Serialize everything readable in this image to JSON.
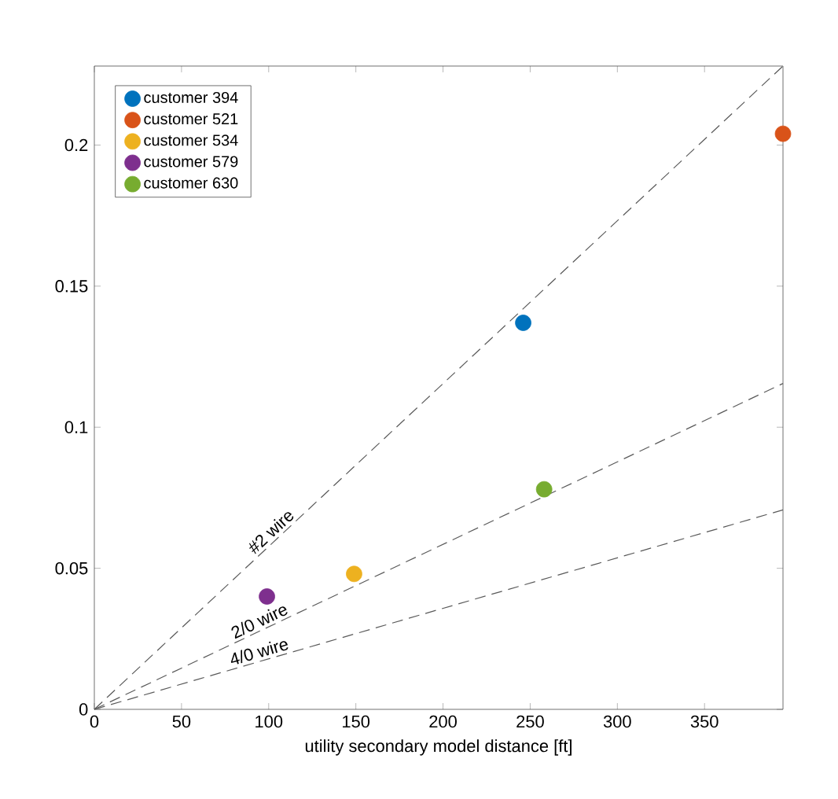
{
  "chart_data": {
    "type": "scatter",
    "xlabel": "utility secondary model distance [ft]",
    "xlim": [
      0,
      395
    ],
    "ylim": [
      0,
      0.228
    ],
    "xticks": [
      0,
      50,
      100,
      150,
      200,
      250,
      300,
      350
    ],
    "yticks": [
      0,
      0.05,
      0.1,
      0.15,
      0.2
    ],
    "grid": false,
    "legend": "top left",
    "marker": "circle",
    "series": [
      {
        "name": "customer 394",
        "color": "#0072bd",
        "x": [
          246
        ],
        "values": [
          0.137
        ]
      },
      {
        "name": "customer 521",
        "color": "#d95319",
        "x": [
          395
        ],
        "values": [
          0.204
        ]
      },
      {
        "name": "customer 534",
        "color": "#edb120",
        "x": [
          149
        ],
        "values": [
          0.048
        ]
      },
      {
        "name": "customer 579",
        "color": "#7e2f8e",
        "x": [
          99
        ],
        "values": [
          0.04
        ]
      },
      {
        "name": "customer 630",
        "color": "#77ac30",
        "x": [
          258
        ],
        "values": [
          0.078
        ]
      },
      {
        "type": "line",
        "line_style": "dashed",
        "marker": "none",
        "color": "#595959",
        "x": [
          0,
          395
        ],
        "values": [
          0,
          0.228
        ]
      },
      {
        "type": "line",
        "line_style": "dashed",
        "marker": "none",
        "color": "#595959",
        "x": [
          0,
          395
        ],
        "values": [
          0,
          0.1155
        ]
      },
      {
        "type": "line",
        "line_style": "dashed",
        "marker": "none",
        "color": "#595959",
        "x": [
          0,
          395
        ],
        "values": [
          0,
          0.0707
        ]
      }
    ],
    "annotations": [
      {
        "text": "#2 wire",
        "x": 105,
        "y": 0.0606
      },
      {
        "text": "2/0 wire",
        "x": 97,
        "y": 0.0283
      },
      {
        "text": "4/0 wire",
        "x": 96,
        "y": 0.0172
      }
    ]
  }
}
